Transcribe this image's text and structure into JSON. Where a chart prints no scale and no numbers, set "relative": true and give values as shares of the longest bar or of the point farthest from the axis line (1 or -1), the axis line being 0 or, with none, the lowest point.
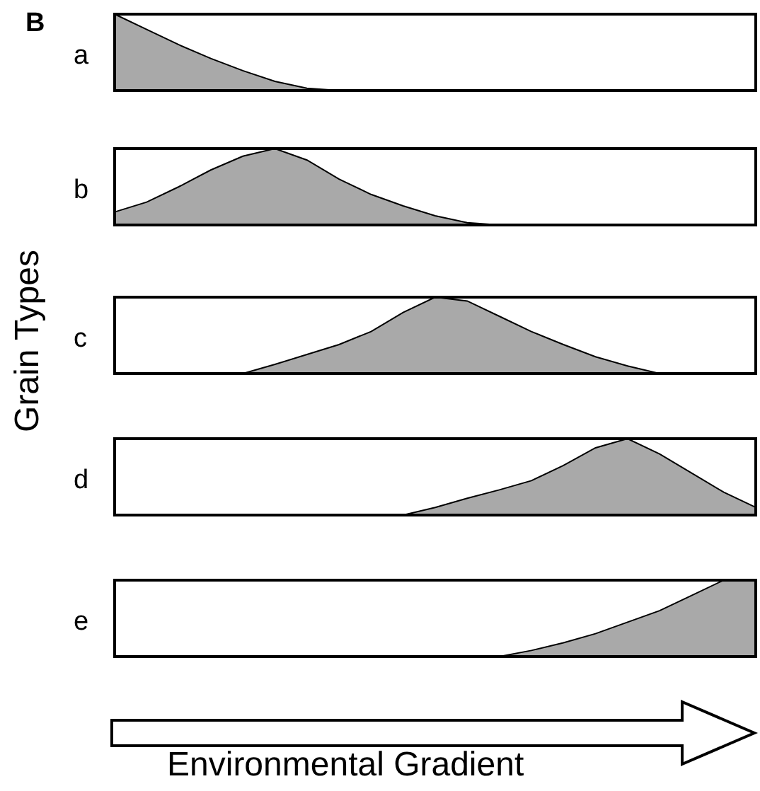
{
  "chart_data": [
    {
      "type": "area",
      "title": "a",
      "annotations": [
        "B"
      ],
      "relative": true,
      "color": "#a9a9a9",
      "categories": [
        null,
        null,
        null,
        null,
        null,
        null,
        null,
        null,
        null,
        null,
        null,
        null,
        null,
        null,
        null,
        null,
        null,
        null,
        null,
        null,
        null
      ],
      "values": [
        1,
        0.8,
        0.6,
        0.42,
        0.26,
        0.12,
        0.03,
        0,
        0,
        0,
        0,
        0,
        0,
        0,
        0,
        0,
        0,
        0,
        0,
        0,
        0
      ]
    },
    {
      "type": "area",
      "title": "b",
      "relative": true,
      "color": "#a9a9a9",
      "categories": [
        null,
        null,
        null,
        null,
        null,
        null,
        null,
        null,
        null,
        null,
        null,
        null,
        null,
        null,
        null,
        null,
        null,
        null,
        null,
        null,
        null
      ],
      "values": [
        0.17,
        0.3,
        0.5,
        0.72,
        0.9,
        1,
        0.85,
        0.6,
        0.4,
        0.25,
        0.12,
        0.03,
        0,
        0,
        0,
        0,
        0,
        0,
        0,
        0,
        0
      ]
    },
    {
      "type": "area",
      "title": "c",
      "annotations": [
        "Grain Types"
      ],
      "relative": true,
      "color": "#a9a9a9",
      "categories": [
        null,
        null,
        null,
        null,
        null,
        null,
        null,
        null,
        null,
        null,
        null,
        null,
        null,
        null,
        null,
        null,
        null,
        null,
        null,
        null,
        null
      ],
      "values": [
        0,
        0,
        0,
        0,
        0,
        0.12,
        0.25,
        0.38,
        0.55,
        0.8,
        1,
        0.95,
        0.75,
        0.55,
        0.38,
        0.22,
        0.1,
        0,
        0,
        0,
        0
      ]
    },
    {
      "type": "area",
      "title": "d",
      "relative": true,
      "color": "#a9a9a9",
      "categories": [
        null,
        null,
        null,
        null,
        null,
        null,
        null,
        null,
        null,
        null,
        null,
        null,
        null,
        null,
        null,
        null,
        null,
        null,
        null,
        null,
        null
      ],
      "values": [
        0,
        0,
        0,
        0,
        0,
        0,
        0,
        0,
        0,
        0,
        0.1,
        0.22,
        0.33,
        0.45,
        0.65,
        0.88,
        1,
        0.8,
        0.55,
        0.3,
        0.1
      ]
    },
    {
      "type": "area",
      "title": "e",
      "xlabel": "Environmental Gradient",
      "relative": true,
      "color": "#a9a9a9",
      "categories": [
        null,
        null,
        null,
        null,
        null,
        null,
        null,
        null,
        null,
        null,
        null,
        null,
        null,
        null,
        null,
        null,
        null,
        null,
        null,
        null,
        null
      ],
      "values": [
        0,
        0,
        0,
        0,
        0,
        0,
        0,
        0,
        0,
        0,
        0,
        0,
        0,
        0.08,
        0.18,
        0.3,
        0.45,
        0.6,
        0.8,
        1,
        1
      ]
    }
  ]
}
